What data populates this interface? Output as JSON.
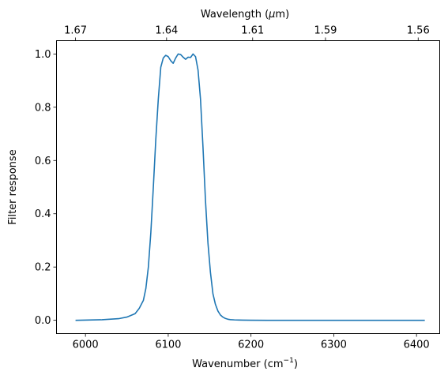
{
  "chart_data": {
    "type": "line",
    "title": "",
    "xlabel": "Wavenumber (cm",
    "xlabel_sup": "−1",
    "xlabel_close": ")",
    "ylabel": "Filter response",
    "top_xlabel": "Wavelength (",
    "top_xlabel_mu": "μ",
    "top_xlabel_close": "m)",
    "xlim": [
      5965,
      6428
    ],
    "ylim": [
      -0.05,
      1.05
    ],
    "grid": false,
    "x_ticks": [
      6000,
      6100,
      6200,
      6300,
      6400
    ],
    "x_tick_labels": [
      "6000",
      "6100",
      "6200",
      "6300",
      "6400"
    ],
    "y_ticks": [
      0.0,
      0.2,
      0.4,
      0.6,
      0.8,
      1.0
    ],
    "y_tick_labels": [
      "0.0",
      "0.2",
      "0.4",
      "0.6",
      "0.8",
      "1.0"
    ],
    "top_ticks_wavenumber": [
      5988,
      6098,
      6202,
      6290,
      6402
    ],
    "top_tick_labels": [
      "1.67",
      "1.64",
      "1.61",
      "1.59",
      "1.56"
    ],
    "line_color": "#1f77b4",
    "series": [
      {
        "x": [
          5988,
          6020,
          6040,
          6050,
          6060,
          6065,
          6070,
          6073,
          6076,
          6079,
          6082,
          6085,
          6088,
          6091,
          6094,
          6097,
          6100,
          6103,
          6106,
          6109,
          6112,
          6115,
          6118,
          6121,
          6124,
          6127,
          6130,
          6133,
          6136,
          6139,
          6142,
          6145,
          6148,
          6151,
          6154,
          6157,
          6160,
          6163,
          6166,
          6169,
          6172,
          6175,
          6180,
          6185,
          6190,
          6200,
          6220,
          6260,
          6300,
          6350,
          6410
        ],
        "y": [
          0.0,
          0.002,
          0.006,
          0.012,
          0.025,
          0.045,
          0.075,
          0.12,
          0.2,
          0.33,
          0.5,
          0.68,
          0.83,
          0.95,
          0.985,
          0.995,
          0.99,
          0.975,
          0.965,
          0.985,
          1.0,
          0.998,
          0.988,
          0.98,
          0.988,
          0.987,
          1.0,
          0.99,
          0.94,
          0.83,
          0.65,
          0.45,
          0.29,
          0.18,
          0.1,
          0.06,
          0.035,
          0.02,
          0.012,
          0.007,
          0.004,
          0.0025,
          0.0015,
          0.001,
          0.0007,
          0.0003,
          0.0,
          0.0,
          0.0,
          0.0,
          0.0
        ]
      }
    ]
  }
}
